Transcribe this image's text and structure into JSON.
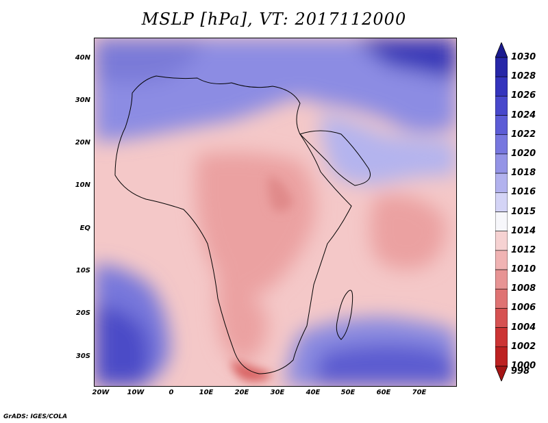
{
  "title": "MSLP [hPa], VT: 2017112000",
  "credit": "GrADS: IGES/COLA",
  "y_axis_labels": [
    "40N",
    "30N",
    "20N",
    "10N",
    "EQ",
    "10S",
    "20S",
    "30S"
  ],
  "x_axis_labels": [
    "20W",
    "10W",
    "0",
    "10E",
    "20E",
    "30E",
    "40E",
    "50E",
    "60E",
    "70E"
  ],
  "colorbar": {
    "labels": [
      "1030",
      "1028",
      "1026",
      "1024",
      "1022",
      "1020",
      "1018",
      "1016",
      "1015",
      "1014",
      "1012",
      "1010",
      "1008",
      "1006",
      "1004",
      "1002",
      "1000",
      "998"
    ],
    "colors": [
      "#1b1b8f",
      "#2727a8",
      "#3434bd",
      "#4848cc",
      "#5c5cd6",
      "#7777df",
      "#9494e6",
      "#b2b2ee",
      "#d4d4f6",
      "#f7f7fb",
      "#f6d2d2",
      "#f0b3b3",
      "#e79494",
      "#df7373",
      "#d65252",
      "#cc3434",
      "#bd2121",
      "#a51515"
    ]
  },
  "map": {
    "region": "Africa, Europe & Middle East",
    "lat_range": [
      "36S",
      "45N"
    ],
    "lon_range": [
      "22W",
      "80E"
    ]
  }
}
